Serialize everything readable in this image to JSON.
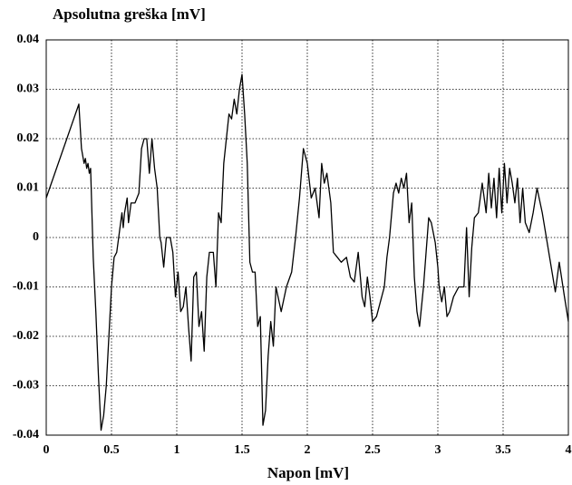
{
  "chart_data": {
    "type": "line",
    "title": "Apsolutna greška [mV]",
    "xlabel": "Napon [mV]",
    "x": [
      0,
      0.25,
      0.27,
      0.29,
      0.3,
      0.31,
      0.32,
      0.33,
      0.34,
      0.35,
      0.36,
      0.38,
      0.4,
      0.42,
      0.44,
      0.46,
      0.48,
      0.5,
      0.52,
      0.54,
      0.56,
      0.58,
      0.59,
      0.6,
      0.62,
      0.63,
      0.65,
      0.68,
      0.71,
      0.73,
      0.75,
      0.77,
      0.79,
      0.81,
      0.83,
      0.85,
      0.87,
      0.88,
      0.9,
      0.92,
      0.95,
      0.97,
      0.99,
      1.01,
      1.03,
      1.05,
      1.07,
      1.09,
      1.11,
      1.13,
      1.15,
      1.17,
      1.19,
      1.21,
      1.23,
      1.25,
      1.28,
      1.3,
      1.32,
      1.34,
      1.36,
      1.38,
      1.4,
      1.42,
      1.44,
      1.46,
      1.48,
      1.5,
      1.52,
      1.54,
      1.56,
      1.58,
      1.6,
      1.62,
      1.64,
      1.66,
      1.68,
      1.7,
      1.72,
      1.74,
      1.76,
      1.8,
      1.84,
      1.88,
      1.91,
      1.94,
      1.97,
      2.0,
      2.03,
      2.06,
      2.09,
      2.11,
      2.13,
      2.15,
      2.18,
      2.2,
      2.23,
      2.26,
      2.3,
      2.33,
      2.36,
      2.39,
      2.42,
      2.44,
      2.46,
      2.48,
      2.5,
      2.53,
      2.56,
      2.59,
      2.61,
      2.63,
      2.66,
      2.68,
      2.7,
      2.72,
      2.74,
      2.76,
      2.78,
      2.8,
      2.82,
      2.84,
      2.86,
      2.89,
      2.91,
      2.93,
      2.95,
      2.98,
      3.0,
      3.01,
      3.03,
      3.05,
      3.07,
      3.09,
      3.12,
      3.16,
      3.2,
      3.22,
      3.24,
      3.26,
      3.28,
      3.31,
      3.34,
      3.37,
      3.39,
      3.41,
      3.43,
      3.45,
      3.47,
      3.49,
      3.51,
      3.53,
      3.55,
      3.57,
      3.59,
      3.61,
      3.63,
      3.65,
      3.67,
      3.7,
      3.73,
      3.76,
      3.8,
      3.85,
      3.9,
      3.93,
      3.97,
      4.0
    ],
    "values": [
      0.008,
      0.027,
      0.018,
      0.015,
      0.016,
      0.014,
      0.015,
      0.013,
      0.014,
      0.005,
      -0.004,
      -0.015,
      -0.028,
      -0.039,
      -0.036,
      -0.03,
      -0.02,
      -0.01,
      -0.004,
      -0.003,
      0.001,
      0.005,
      0.002,
      0.005,
      0.008,
      0.003,
      0.007,
      0.007,
      0.009,
      0.018,
      0.02,
      0.02,
      0.013,
      0.02,
      0.014,
      0.01,
      0.0,
      -0.001,
      -0.006,
      0.0,
      0.0,
      -0.003,
      -0.012,
      -0.007,
      -0.015,
      -0.014,
      -0.01,
      -0.018,
      -0.025,
      -0.008,
      -0.007,
      -0.018,
      -0.015,
      -0.023,
      -0.008,
      -0.003,
      -0.003,
      -0.01,
      0.005,
      0.003,
      0.015,
      0.02,
      0.025,
      0.024,
      0.028,
      0.025,
      0.03,
      0.033,
      0.025,
      0.015,
      -0.005,
      -0.007,
      -0.007,
      -0.018,
      -0.016,
      -0.038,
      -0.035,
      -0.024,
      -0.017,
      -0.022,
      -0.01,
      -0.015,
      -0.01,
      -0.007,
      0.0,
      0.008,
      0.018,
      0.015,
      0.008,
      0.01,
      0.004,
      0.015,
      0.011,
      0.013,
      0.007,
      -0.003,
      -0.004,
      -0.005,
      -0.004,
      -0.008,
      -0.009,
      -0.003,
      -0.012,
      -0.014,
      -0.008,
      -0.012,
      -0.017,
      -0.016,
      -0.013,
      -0.01,
      -0.004,
      0.0,
      0.009,
      0.011,
      0.009,
      0.012,
      0.01,
      0.013,
      0.003,
      0.007,
      -0.008,
      -0.015,
      -0.018,
      -0.01,
      -0.003,
      0.004,
      0.003,
      -0.001,
      -0.006,
      -0.01,
      -0.013,
      -0.01,
      -0.016,
      -0.015,
      -0.012,
      -0.01,
      -0.01,
      0.002,
      -0.012,
      -0.002,
      0.004,
      0.005,
      0.011,
      0.005,
      0.013,
      0.006,
      0.012,
      0.004,
      0.014,
      0.005,
      0.015,
      0.007,
      0.014,
      0.011,
      0.007,
      0.012,
      0.003,
      0.01,
      0.003,
      0.001,
      0.005,
      0.01,
      0.005,
      -0.003,
      -0.011,
      -0.005,
      -0.012,
      -0.017
    ],
    "color": "#000000",
    "xlim": [
      0,
      4
    ],
    "xticks": [
      0,
      0.5,
      1,
      1.5,
      2,
      2.5,
      3,
      3.5,
      4
    ],
    "ylim": [
      -0.04,
      0.04
    ],
    "yticks": [
      -0.04,
      -0.03,
      -0.02,
      -0.01,
      0,
      0.01,
      0.02,
      0.03,
      0.04
    ],
    "grid": true
  }
}
